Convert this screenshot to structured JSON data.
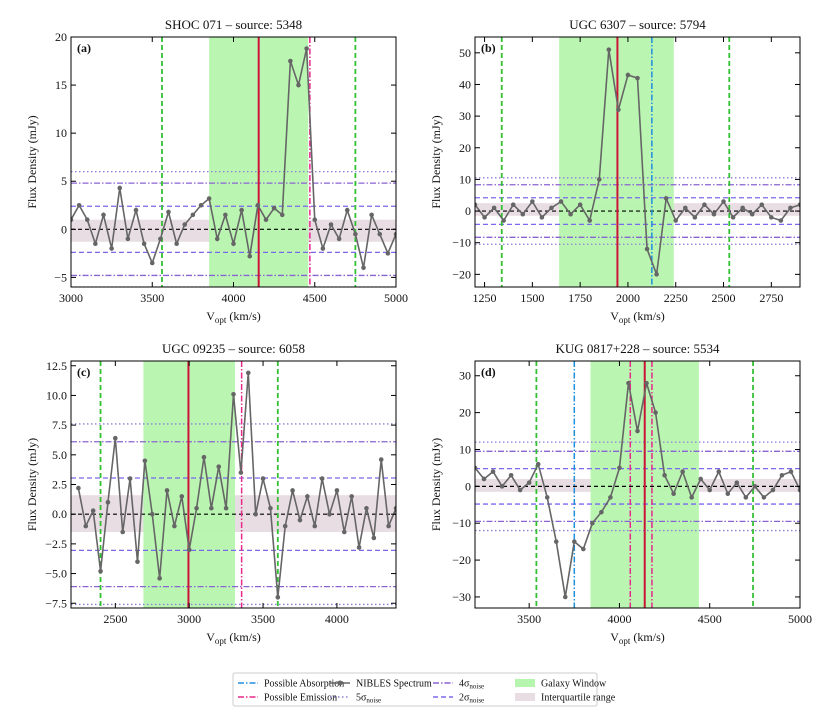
{
  "legend": [
    {
      "label": "Possible Absorption",
      "color": "#1f8fe0",
      "dash": "6,2,1.5,2"
    },
    {
      "label": "Possible Emission",
      "color": "#e8288a",
      "dash": "6,2,1.5,2"
    },
    {
      "label": "NIBLES Spectrum",
      "color": "#666666"
    },
    {
      "label": "5σ",
      "sub": "noise",
      "color": "#8f7fd6",
      "dash": "1.5,2.5"
    },
    {
      "label": "4σ",
      "sub": "noise",
      "color": "#8a63d2",
      "dash": "6,2,1.5,2"
    },
    {
      "label": "2σ",
      "sub": "noise",
      "color": "#7b68ee",
      "dash": "5,3"
    },
    {
      "label": "Galaxy Window",
      "color": "#b6f5ae"
    },
    {
      "label": "Interquartile range",
      "color": "#e9dde4"
    }
  ],
  "bound_color": "#33c033",
  "source_color": "#cc1438",
  "chart_data": [
    {
      "type": "line",
      "title": "SHOC 071 – source: 5348",
      "label": "(a)",
      "xlabel": {
        "text": "V",
        "sub": "opt",
        "unit": " (km/s)"
      },
      "ylabel": "Flux Density (mJy)",
      "xlim": [
        3000,
        5000
      ],
      "ylim": [
        -6,
        20
      ],
      "xticks": [
        3000,
        3500,
        4000,
        4500,
        5000
      ],
      "yticks": [
        {
          "value": -5,
          "label": "−5"
        },
        0,
        5,
        10,
        15,
        20
      ],
      "window": [
        3850,
        4460
      ],
      "iqr": [
        -1.3,
        1.0
      ],
      "sigma5": 6,
      "sigma4": 4.8,
      "sigma2": 2.4,
      "bounds": [
        3560,
        4750
      ],
      "source_line": 4155,
      "emission": [
        4470
      ],
      "absorption": [],
      "x": [
        3000,
        3050,
        3100,
        3150,
        3200,
        3250,
        3300,
        3350,
        3400,
        3450,
        3500,
        3550,
        3600,
        3650,
        3700,
        3750,
        3800,
        3850,
        3900,
        3950,
        4000,
        4050,
        4100,
        4150,
        4200,
        4250,
        4300,
        4350,
        4400,
        4450,
        4500,
        4550,
        4600,
        4650,
        4700,
        4750,
        4800,
        4850,
        4900,
        4950,
        5000
      ],
      "series": [
        {
          "color": "#666666",
          "values": [
            1,
            2.5,
            1,
            -1.5,
            1.5,
            -2,
            4.3,
            -1,
            2,
            -1.5,
            -3.5,
            -1,
            1.8,
            -1.5,
            0.5,
            1.5,
            2.5,
            3.2,
            -1,
            1.5,
            -1.5,
            2,
            -2.8,
            2.5,
            1,
            2.2,
            1.5,
            17.5,
            15,
            18.8,
            1,
            -2,
            0.5,
            -1,
            2,
            -0.5,
            -4,
            1.5,
            -0.5,
            -2.5,
            -0.5
          ]
        }
      ]
    },
    {
      "type": "line",
      "title": "UGC 6307 – source: 5794",
      "label": "(b)",
      "xlabel": {
        "text": "V",
        "sub": "opt",
        "unit": " (km/s)"
      },
      "ylabel": "Flux Density (mJy)",
      "xlim": [
        1200,
        2900
      ],
      "ylim": [
        -24,
        55
      ],
      "xticks": [
        1250,
        1500,
        1750,
        2000,
        2250,
        2500,
        2750
      ],
      "yticks": [
        {
          "value": -20,
          "label": "−20"
        },
        {
          "value": -10,
          "label": "−10"
        },
        0,
        10,
        20,
        30,
        40,
        50
      ],
      "window": [
        1640,
        2240
      ],
      "iqr": [
        -1.5,
        2.5
      ],
      "sigma5": 10.5,
      "sigma4": 8.3,
      "sigma2": 4.2,
      "bounds": [
        1340,
        2530
      ],
      "source_line": 1945,
      "emission": [],
      "absorption": [
        2125
      ],
      "x": [
        1200,
        1250,
        1300,
        1350,
        1400,
        1450,
        1500,
        1550,
        1600,
        1650,
        1700,
        1750,
        1800,
        1850,
        1900,
        1950,
        2000,
        2050,
        2100,
        2150,
        2200,
        2250,
        2300,
        2350,
        2400,
        2450,
        2500,
        2550,
        2600,
        2650,
        2700,
        2750,
        2800,
        2850,
        2900
      ],
      "series": [
        {
          "color": "#666666",
          "values": [
            2,
            -2,
            1,
            -3,
            2,
            -1,
            3,
            -2,
            1,
            3,
            -1,
            2,
            -3,
            10,
            51,
            32,
            43,
            42,
            -12,
            -20,
            4,
            -3,
            1,
            -2,
            2,
            -1,
            3,
            -2,
            1,
            -1,
            2,
            -2,
            -3,
            1,
            2
          ]
        }
      ]
    },
    {
      "type": "line",
      "title": "UGC 09235 – source: 6058",
      "label": "(c)",
      "xlabel": {
        "text": "V",
        "sub": "opt",
        "unit": " (km/s)"
      },
      "ylabel": "Flux Density (mJy)",
      "xlim": [
        2200,
        4400
      ],
      "ylim": [
        -7.9,
        12.9
      ],
      "xticks": [
        2500,
        3000,
        3500,
        4000
      ],
      "yticks": [
        {
          "value": -7.5,
          "label": "−7.5"
        },
        {
          "value": -5,
          "label": "−5.0"
        },
        {
          "value": -2.5,
          "label": "−2.5"
        },
        {
          "value": 0,
          "label": "0.0"
        },
        2.5,
        {
          "value": 5,
          "label": "5.0"
        },
        7.5,
        {
          "value": 10,
          "label": "10.0"
        },
        12.5
      ],
      "window": [
        2690,
        3310
      ],
      "iqr": [
        -1.5,
        1.6
      ],
      "sigma5": 7.6,
      "sigma4": 6.1,
      "sigma2": 3.05,
      "bounds": [
        2400,
        3600
      ],
      "source_line": 2995,
      "emission": [
        3355
      ],
      "absorption": [],
      "x": [
        2250,
        2300,
        2350,
        2400,
        2450,
        2500,
        2550,
        2600,
        2650,
        2700,
        2750,
        2800,
        2850,
        2900,
        2950,
        3000,
        3050,
        3100,
        3150,
        3200,
        3250,
        3300,
        3350,
        3400,
        3450,
        3500,
        3550,
        3600,
        3650,
        3700,
        3750,
        3800,
        3850,
        3900,
        3950,
        4000,
        4050,
        4100,
        4150,
        4200,
        4250,
        4300,
        4350,
        4400
      ],
      "series": [
        {
          "color": "#666666",
          "values": [
            2.2,
            -1,
            0.3,
            -4.8,
            1,
            6.4,
            -1.5,
            3,
            -4,
            4.5,
            0,
            -5.4,
            2,
            -1,
            1.5,
            -3,
            0.5,
            4.8,
            0.5,
            4,
            0.5,
            10.1,
            3.5,
            11.9,
            0,
            3,
            0.5,
            -7,
            -1,
            2,
            -0.5,
            1.5,
            -1,
            3,
            0,
            2,
            -1.5,
            1.5,
            -2.8,
            0.5,
            -2,
            4.6,
            -1,
            0.5
          ]
        }
      ]
    },
    {
      "type": "line",
      "title": "KUG 0817+228 – source: 5534",
      "label": "(d)",
      "xlabel": {
        "text": "V",
        "sub": "opt",
        "unit": " (km/s)"
      },
      "ylabel": "Flux Density (mJy)",
      "xlim": [
        3200,
        5000
      ],
      "ylim": [
        -33,
        34
      ],
      "xticks": [
        3500,
        4000,
        4500,
        5000
      ],
      "yticks": [
        {
          "value": -30,
          "label": "−30"
        },
        {
          "value": -20,
          "label": "−20"
        },
        {
          "value": -10,
          "label": "−10"
        },
        0,
        10,
        20,
        30
      ],
      "window": [
        3840,
        4440
      ],
      "iqr": [
        -1.5,
        2
      ],
      "sigma5": 12,
      "sigma4": 9.5,
      "sigma2": 4.8,
      "bounds": [
        3540,
        4740
      ],
      "source_line": 4140,
      "emission": [
        4060,
        4180
      ],
      "absorption": [
        3750
      ],
      "x": [
        3200,
        3250,
        3300,
        3350,
        3400,
        3450,
        3500,
        3550,
        3600,
        3650,
        3700,
        3750,
        3800,
        3850,
        3900,
        3950,
        4000,
        4050,
        4100,
        4150,
        4200,
        4250,
        4300,
        4350,
        4400,
        4450,
        4500,
        4550,
        4600,
        4650,
        4700,
        4750,
        4800,
        4850,
        4900,
        4950,
        5000
      ],
      "series": [
        {
          "color": "#666666",
          "values": [
            5,
            2,
            4,
            0,
            3,
            -1,
            1,
            6,
            -3,
            -15,
            -30,
            -15,
            -17,
            -10,
            -7,
            -3,
            5,
            28,
            15,
            28,
            20,
            3,
            -2,
            4,
            -3,
            2,
            -1,
            4,
            -2,
            1,
            -3,
            0,
            -3,
            -1,
            3,
            4,
            -1
          ]
        }
      ]
    }
  ]
}
